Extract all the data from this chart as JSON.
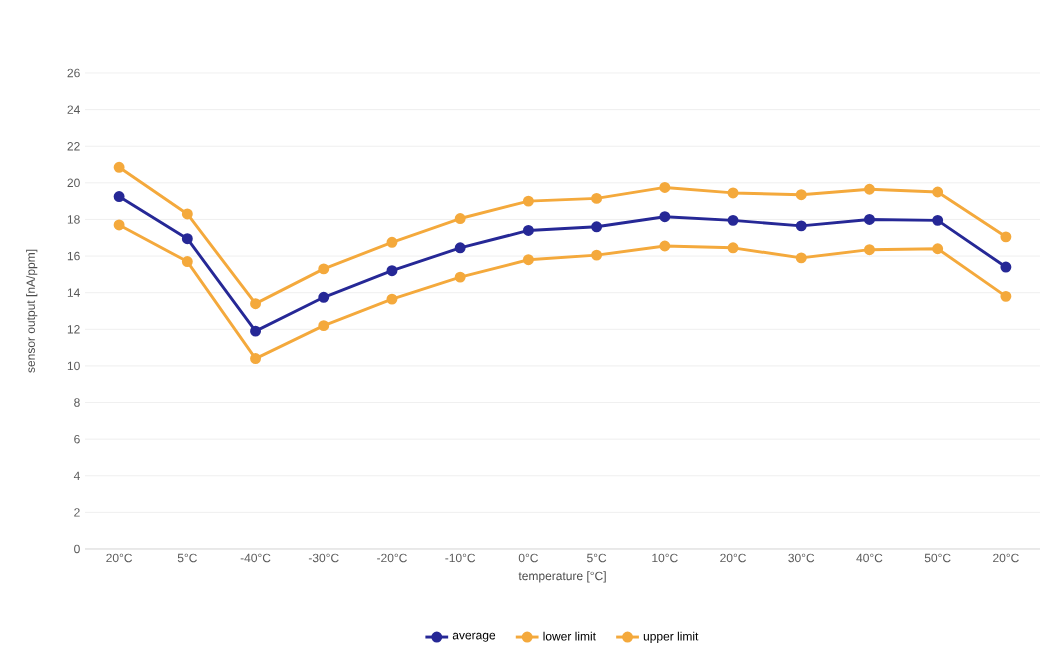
{
  "chart_data": {
    "type": "line",
    "xlabel": "temperature [°C]",
    "ylabel": "sensor output [nA/ppm]",
    "categories": [
      "20°C",
      "5°C",
      "-40°C",
      "-30°C",
      "-20°C",
      "-10°C",
      "0°C",
      "5°C",
      "10°C",
      "20°C",
      "30°C",
      "40°C",
      "50°C",
      "20°C"
    ],
    "series": [
      {
        "name": "average",
        "color": "#262896",
        "values": [
          19.25,
          16.95,
          11.9,
          13.75,
          15.2,
          16.45,
          17.4,
          17.6,
          18.15,
          17.95,
          17.65,
          18.0,
          17.95,
          15.4
        ]
      },
      {
        "name": "lower limit",
        "color": "#f4a93c",
        "values": [
          17.7,
          15.7,
          10.4,
          12.2,
          13.65,
          14.85,
          15.8,
          16.05,
          16.55,
          16.45,
          15.9,
          16.35,
          16.4,
          13.8
        ]
      },
      {
        "name": "upper limit",
        "color": "#f4a93c",
        "values": [
          20.85,
          18.3,
          13.4,
          15.3,
          16.75,
          18.05,
          19.0,
          19.15,
          19.75,
          19.45,
          19.35,
          19.65,
          19.5,
          17.05
        ]
      }
    ],
    "ylim": [
      0,
      26
    ],
    "yticks": [
      0,
      2,
      4,
      6,
      8,
      10,
      12,
      14,
      16,
      18,
      20,
      22,
      24,
      26
    ],
    "grid": "y",
    "legend": "bottom",
    "marker": "circle",
    "line_style": "solid"
  }
}
